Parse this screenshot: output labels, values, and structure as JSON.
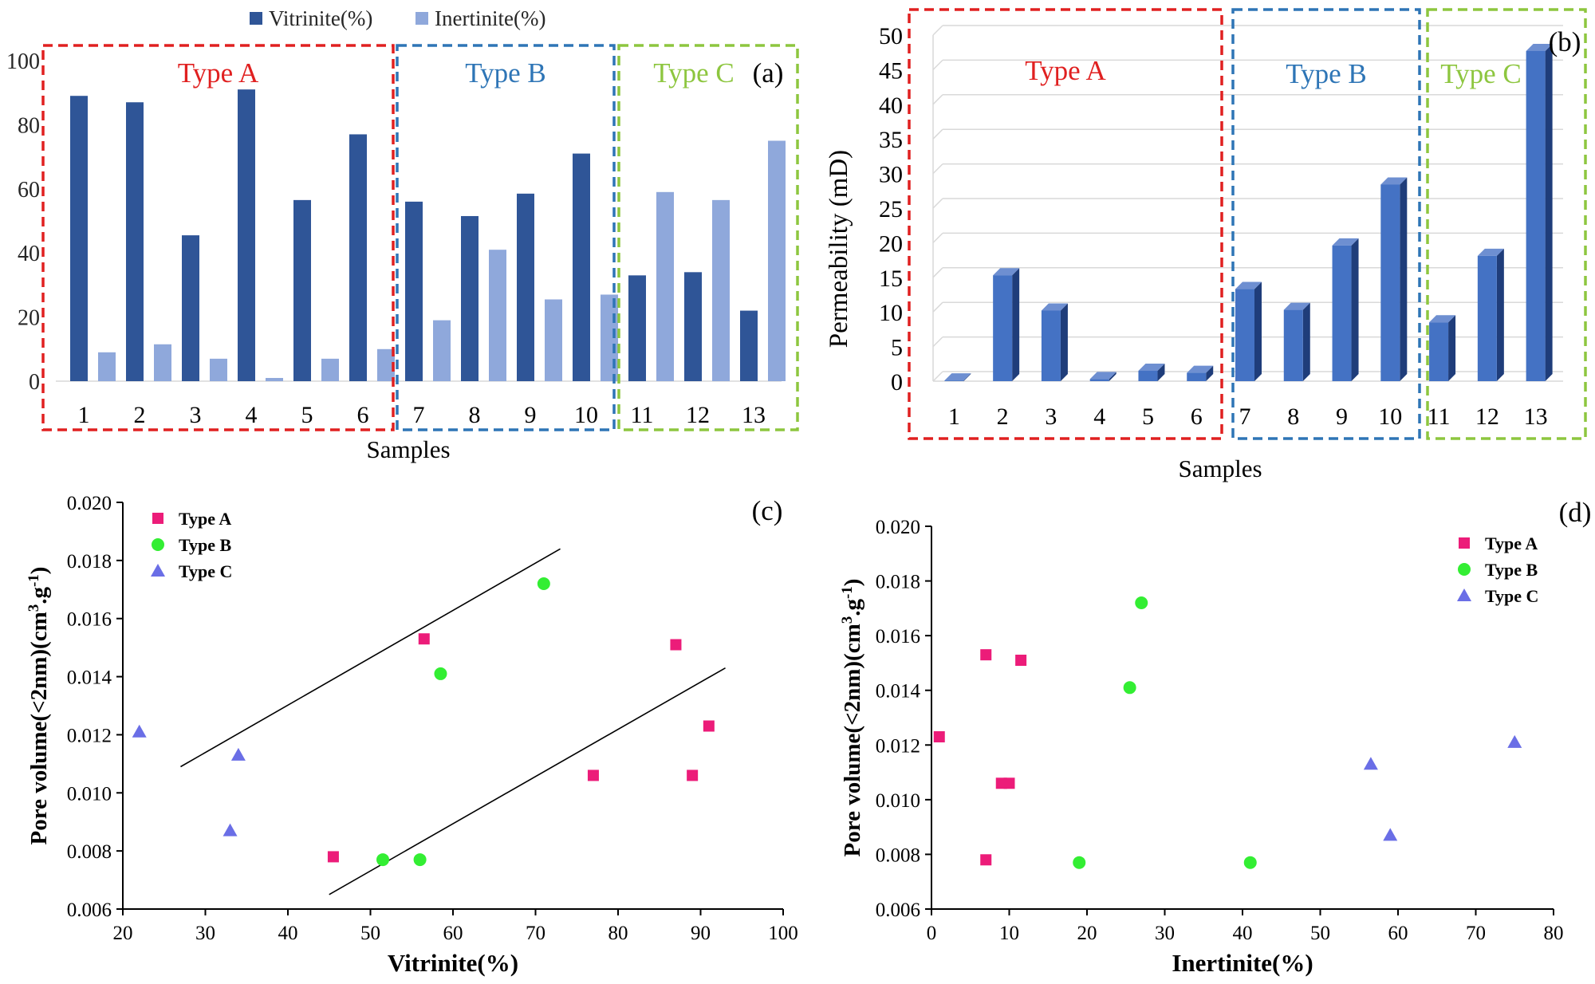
{
  "chart_data": [
    {
      "panel": "(a)",
      "type": "bar",
      "xlabel": "Samples",
      "ylabel": "",
      "ylim": [
        0,
        100
      ],
      "yticks": [
        0,
        20,
        40,
        60,
        80,
        100
      ],
      "legend_position": "top",
      "categories": [
        "1",
        "2",
        "3",
        "4",
        "5",
        "6",
        "7",
        "8",
        "9",
        "10",
        "11",
        "12",
        "13"
      ],
      "series": [
        {
          "name": "Vitrinite(%)",
          "color": "#2f5597",
          "values": [
            89,
            87,
            45.5,
            91,
            56.5,
            77,
            56,
            51.5,
            58.5,
            71,
            33,
            34,
            22
          ]
        },
        {
          "name": "Inertinite(%)",
          "color": "#8fa8db",
          "values": [
            9,
            11.5,
            7,
            1,
            7,
            10,
            19,
            41,
            25.5,
            27,
            59,
            56.5,
            75
          ]
        }
      ],
      "groups": [
        {
          "label": "Type A",
          "color": "#e02020",
          "samples": [
            "1",
            "6"
          ]
        },
        {
          "label": "Type B",
          "color": "#2e75b6",
          "samples": [
            "7",
            "10"
          ]
        },
        {
          "label": "Type C",
          "color": "#8dc63f",
          "samples": [
            "11",
            "13"
          ]
        }
      ]
    },
    {
      "panel": "(b)",
      "type": "bar",
      "xlabel": "Samples",
      "ylabel": "Permeability (mD)",
      "ylim": [
        0,
        50
      ],
      "yticks": [
        0,
        5,
        10,
        15,
        20,
        25,
        30,
        35,
        40,
        45,
        50
      ],
      "color": "#4472c4",
      "categories": [
        "1",
        "2",
        "3",
        "4",
        "5",
        "6",
        "7",
        "8",
        "9",
        "10",
        "11",
        "12",
        "13"
      ],
      "values": [
        0.1,
        15.3,
        10.2,
        0.3,
        1.5,
        1.2,
        13.3,
        10.3,
        19.6,
        28.4,
        8.5,
        18.1,
        47.7
      ],
      "groups": [
        {
          "label": "Type A",
          "color": "#e02020",
          "samples": [
            "1",
            "6"
          ]
        },
        {
          "label": "Type B",
          "color": "#2e75b6",
          "samples": [
            "7",
            "10"
          ]
        },
        {
          "label": "Type C",
          "color": "#8dc63f",
          "samples": [
            "11",
            "13"
          ]
        }
      ]
    },
    {
      "panel": "(c)",
      "type": "scatter",
      "xlabel": "Vitrinite(%)",
      "ylabel_main": "Pore volume(<2nm)(cm",
      "ylabel_sup1": "3",
      "ylabel_mid": ".g",
      "ylabel_sup2": "-1",
      "ylabel_end": ")",
      "xlim": [
        20,
        100
      ],
      "ylim": [
        0.006,
        0.02
      ],
      "xticks": [
        20,
        30,
        40,
        50,
        60,
        70,
        80,
        90,
        100
      ],
      "yticks": [
        "0.006",
        "0.008",
        "0.010",
        "0.012",
        "0.014",
        "0.016",
        "0.018",
        "0.020"
      ],
      "legend_position": "top-left",
      "series": [
        {
          "name": "Type A",
          "marker": "square",
          "color": "#ec1c79",
          "x": [
            45.5,
            56.5,
            77,
            87,
            89,
            91
          ],
          "y": [
            0.0078,
            0.0153,
            0.0106,
            0.0151,
            0.0106,
            0.0123
          ]
        },
        {
          "name": "Type B",
          "marker": "circle",
          "color": "#33ee33",
          "x": [
            51.5,
            56,
            58.5,
            71
          ],
          "y": [
            0.0077,
            0.0077,
            0.0141,
            0.0172
          ]
        },
        {
          "name": "Type C",
          "marker": "triangle",
          "color": "#6a6ee6",
          "x": [
            22,
            33,
            34
          ],
          "y": [
            0.0121,
            0.0087,
            0.0113
          ]
        }
      ],
      "trendlines": [
        {
          "x": [
            27,
            73
          ],
          "y": [
            0.0109,
            0.0184
          ]
        },
        {
          "x": [
            45,
            93
          ],
          "y": [
            0.0065,
            0.0143
          ]
        }
      ]
    },
    {
      "panel": "(d)",
      "type": "scatter",
      "xlabel": "Inertinite(%)",
      "ylabel_main": "Pore volume(<2nm)(cm",
      "ylabel_sup1": "3",
      "ylabel_mid": ".g",
      "ylabel_sup2": "-1",
      "ylabel_end": ")",
      "xlim": [
        0,
        80
      ],
      "ylim": [
        0.006,
        0.02
      ],
      "xticks": [
        0,
        10,
        20,
        30,
        40,
        50,
        60,
        70,
        80
      ],
      "yticks": [
        "0.006",
        "0.008",
        "0.010",
        "0.012",
        "0.014",
        "0.016",
        "0.018",
        "0.020"
      ],
      "legend_position": "top-right",
      "series": [
        {
          "name": "Type A",
          "marker": "square",
          "color": "#ec1c79",
          "x": [
            1,
            7,
            7,
            9,
            10,
            11.5
          ],
          "y": [
            0.0123,
            0.0153,
            0.0078,
            0.0106,
            0.0106,
            0.0151
          ]
        },
        {
          "name": "Type B",
          "marker": "circle",
          "color": "#33ee33",
          "x": [
            19,
            25.5,
            27,
            41
          ],
          "y": [
            0.0077,
            0.0141,
            0.0172,
            0.0077
          ]
        },
        {
          "name": "Type C",
          "marker": "triangle",
          "color": "#6a6ee6",
          "x": [
            56.5,
            59,
            75
          ],
          "y": [
            0.0113,
            0.0087,
            0.0121
          ]
        }
      ]
    }
  ]
}
